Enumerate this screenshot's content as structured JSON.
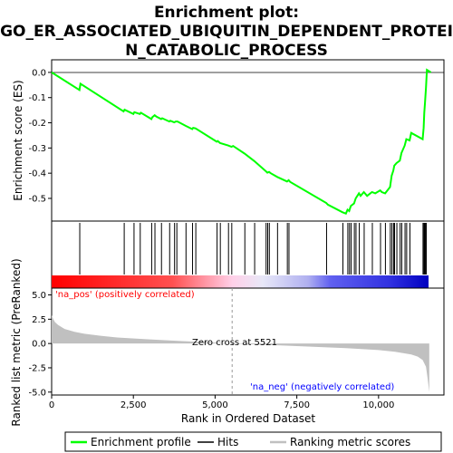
{
  "title_line1": "Enrichment plot:",
  "title_line2": "GO_ER_ASSOCIATED_UBIQUITIN_DEPENDENT_PROTEI",
  "title_line3": "N_CATABOLIC_PROCESS",
  "chart_data": {
    "type": "line",
    "es_panel": {
      "ylabel": "Enrichment score (ES)",
      "ylim": [
        -0.59,
        0.05
      ],
      "yticks": [
        0.0,
        -0.1,
        -0.2,
        -0.3,
        -0.4,
        -0.5
      ],
      "ytick_labels": [
        "0.0",
        "-0.1",
        "-0.2",
        "-0.3",
        "-0.4",
        "-0.5"
      ],
      "line_color": "#00ff00",
      "series": [
        {
          "name": "Enrichment profile",
          "x": [
            0,
            850,
            880,
            2200,
            2230,
            2500,
            2530,
            2700,
            2730,
            3050,
            3080,
            3150,
            3200,
            3350,
            3380,
            3600,
            3630,
            3750,
            3800,
            3850,
            4100,
            4300,
            4330,
            4400,
            5050,
            5080,
            5150,
            5400,
            5500,
            5550,
            5900,
            6200,
            6550,
            6600,
            6650,
            6700,
            6900,
            7200,
            7250,
            7300,
            8400,
            8450,
            8900,
            9000,
            9050,
            9100,
            9150,
            9250,
            9300,
            9400,
            9450,
            9550,
            9650,
            9800,
            9900,
            10050,
            10100,
            10200,
            10350,
            10400,
            10450,
            10480,
            10550,
            10650,
            10700,
            10800,
            10850,
            10950,
            11000,
            11350,
            11380,
            11400,
            11420,
            11450,
            11480,
            11600
          ],
          "y": [
            0.0,
            -0.07,
            -0.045,
            -0.155,
            -0.148,
            -0.165,
            -0.158,
            -0.165,
            -0.16,
            -0.185,
            -0.178,
            -0.17,
            -0.175,
            -0.185,
            -0.182,
            -0.195,
            -0.192,
            -0.198,
            -0.195,
            -0.195,
            -0.212,
            -0.225,
            -0.22,
            -0.222,
            -0.275,
            -0.272,
            -0.28,
            -0.29,
            -0.295,
            -0.292,
            -0.322,
            -0.352,
            -0.392,
            -0.398,
            -0.395,
            -0.4,
            -0.415,
            -0.433,
            -0.428,
            -0.435,
            -0.518,
            -0.525,
            -0.555,
            -0.56,
            -0.545,
            -0.55,
            -0.53,
            -0.52,
            -0.5,
            -0.48,
            -0.49,
            -0.475,
            -0.49,
            -0.475,
            -0.48,
            -0.468,
            -0.475,
            -0.48,
            -0.455,
            -0.41,
            -0.39,
            -0.37,
            -0.36,
            -0.35,
            -0.32,
            -0.29,
            -0.265,
            -0.27,
            -0.24,
            -0.265,
            -0.22,
            -0.16,
            -0.12,
            -0.06,
            0.01,
            0.0
          ]
        }
      ]
    },
    "hits_panel": {
      "hit_positions": [
        860,
        2220,
        2520,
        2710,
        3060,
        3160,
        3360,
        3610,
        3760,
        3830,
        4110,
        4310,
        4410,
        5060,
        5160,
        5410,
        5510,
        5910,
        6210,
        6560,
        6610,
        6660,
        6910,
        7210,
        7260,
        8410,
        8910,
        9060,
        9110,
        9160,
        9260,
        9310,
        9410,
        9560,
        9810,
        10060,
        10210,
        10360,
        10410,
        10460,
        10490,
        10560,
        10660,
        10710,
        10810,
        10860,
        10960,
        11360,
        11390,
        11410,
        11430,
        11460
      ]
    },
    "ranked_metric_panel": {
      "ylabel": "Ranked list metric (PreRanked)",
      "ylim": [
        -5.3,
        5.7
      ],
      "yticks": [
        5.0,
        2.5,
        0.0,
        -2.5,
        -5.0
      ],
      "ytick_labels": [
        "5.0",
        "2.5",
        "0.0",
        "-2.5",
        "-5.0"
      ],
      "x": [
        0,
        50,
        100,
        200,
        400,
        700,
        1000,
        1500,
        2000,
        3000,
        4000,
        5000,
        5521,
        6000,
        7000,
        8000,
        9000,
        10000,
        10500,
        11000,
        11200,
        11350,
        11450,
        11500,
        11550
      ],
      "values": [
        2.9,
        2.5,
        2.2,
        1.9,
        1.5,
        1.2,
        1.0,
        0.8,
        0.62,
        0.42,
        0.25,
        0.1,
        0.0,
        -0.07,
        -0.2,
        -0.33,
        -0.48,
        -0.68,
        -0.85,
        -1.12,
        -1.35,
        -1.7,
        -2.4,
        -3.6,
        -5.0
      ],
      "fill_color": "#c0c0c0",
      "zero_cross_label": "Zero cross at 5521",
      "na_pos_label": "'na_pos' (positively correlated)",
      "na_neg_label": "'na_neg' (negatively correlated)"
    },
    "xlabel": "Rank in Ordered Dataset",
    "xlim": [
      0,
      12000
    ],
    "xticks": [
      0,
      2500,
      5000,
      7500,
      10000
    ],
    "xtick_labels": [
      "0",
      "2,500",
      "5,000",
      "7,500",
      "10,000"
    ],
    "dataset_size": 11550,
    "zero_cross": 5521,
    "legend": {
      "placement": "bottom",
      "entries": [
        "Enrichment profile",
        "Hits",
        "Ranking metric scores"
      ]
    }
  }
}
